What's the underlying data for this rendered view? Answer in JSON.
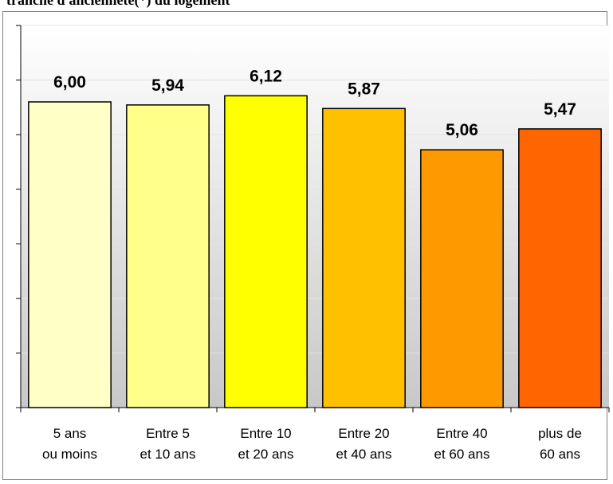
{
  "title": "tranche d'ancienneté(*) du logement",
  "chart_data": {
    "type": "bar",
    "categories": [
      [
        "5 ans",
        "ou moins"
      ],
      [
        "Entre 5",
        "et 10 ans"
      ],
      [
        "Entre 10",
        "et 20 ans"
      ],
      [
        "Entre 20",
        "et 40 ans"
      ],
      [
        "Entre 40",
        "et 60 ans"
      ],
      [
        "plus de",
        "60 ans"
      ]
    ],
    "values": [
      6.0,
      5.94,
      6.12,
      5.87,
      5.06,
      5.47
    ],
    "value_labels": [
      "6,00",
      "5,94",
      "6,12",
      "5,87",
      "5,06",
      "5,47"
    ],
    "colors": [
      "#FFFFC6",
      "#FFFF8A",
      "#FFFF00",
      "#FFC000",
      "#FF9900",
      "#FF6600"
    ],
    "ylim": [
      0,
      7.5
    ],
    "y_gridlines": 7,
    "y_ticks_labeled": false,
    "grid": true,
    "xlabel": "",
    "ylabel": ""
  }
}
